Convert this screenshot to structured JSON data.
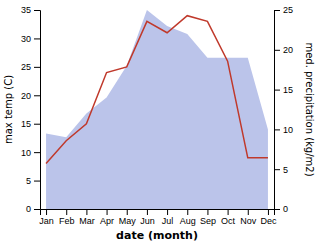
{
  "chart_data": {
    "type": "line",
    "categories": [
      "Jan",
      "Feb",
      "Mar",
      "Apr",
      "May",
      "Jun",
      "Jul",
      "Aug",
      "Sep",
      "Oct",
      "Nov",
      "Dec"
    ],
    "xlabel": "date (month)",
    "ylabel": "max temp (C)",
    "y2label": "med. precipitation (kg/m2)",
    "series": [
      {
        "type": "area",
        "axis": "y2",
        "color": "#bbc4ea",
        "values": [
          9.5,
          9,
          12,
          14,
          18,
          25,
          23,
          22,
          19,
          19,
          19,
          10
        ]
      },
      {
        "type": "line",
        "color": "#c0392b",
        "values": [
          8,
          12,
          15,
          24,
          25,
          33,
          31,
          34,
          33,
          26,
          9,
          9
        ]
      }
    ],
    "ylim": [
      0,
      35
    ],
    "yticks": [
      0,
      5,
      10,
      15,
      20,
      25,
      30,
      35
    ],
    "y2lim": [
      0,
      25
    ],
    "y2ticks": [
      0,
      5,
      10,
      15,
      20,
      25
    ]
  }
}
